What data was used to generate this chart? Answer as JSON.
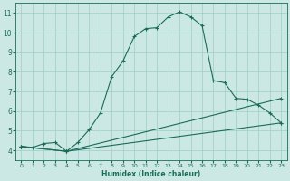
{
  "xlabel": "Humidex (Indice chaleur)",
  "bg_color": "#cce8e4",
  "grid_color": "#9ecdc7",
  "line_color": "#1a6b5a",
  "xlim": [
    -0.5,
    23.5
  ],
  "ylim": [
    3.5,
    11.5
  ],
  "xticks": [
    0,
    1,
    2,
    3,
    4,
    5,
    6,
    7,
    8,
    9,
    10,
    11,
    12,
    13,
    14,
    15,
    16,
    17,
    18,
    19,
    20,
    21,
    22,
    23
  ],
  "yticks": [
    4,
    5,
    6,
    7,
    8,
    9,
    10,
    11
  ],
  "series1_x": [
    0,
    1,
    2,
    3,
    4,
    5,
    6,
    7,
    8,
    9,
    10,
    11,
    12,
    13,
    14,
    15,
    16,
    17,
    18,
    19,
    20,
    21,
    22,
    23
  ],
  "series1_y": [
    4.2,
    4.15,
    4.35,
    4.4,
    3.95,
    4.4,
    5.05,
    5.9,
    7.75,
    8.55,
    9.8,
    10.2,
    10.25,
    10.8,
    11.05,
    10.8,
    10.35,
    7.55,
    7.45,
    6.65,
    6.6,
    6.3,
    5.9,
    5.4
  ],
  "series2_x": [
    0,
    4,
    23
  ],
  "series2_y": [
    4.2,
    3.95,
    6.65
  ],
  "series3_x": [
    0,
    4,
    23
  ],
  "series3_y": [
    4.2,
    3.95,
    5.4
  ]
}
